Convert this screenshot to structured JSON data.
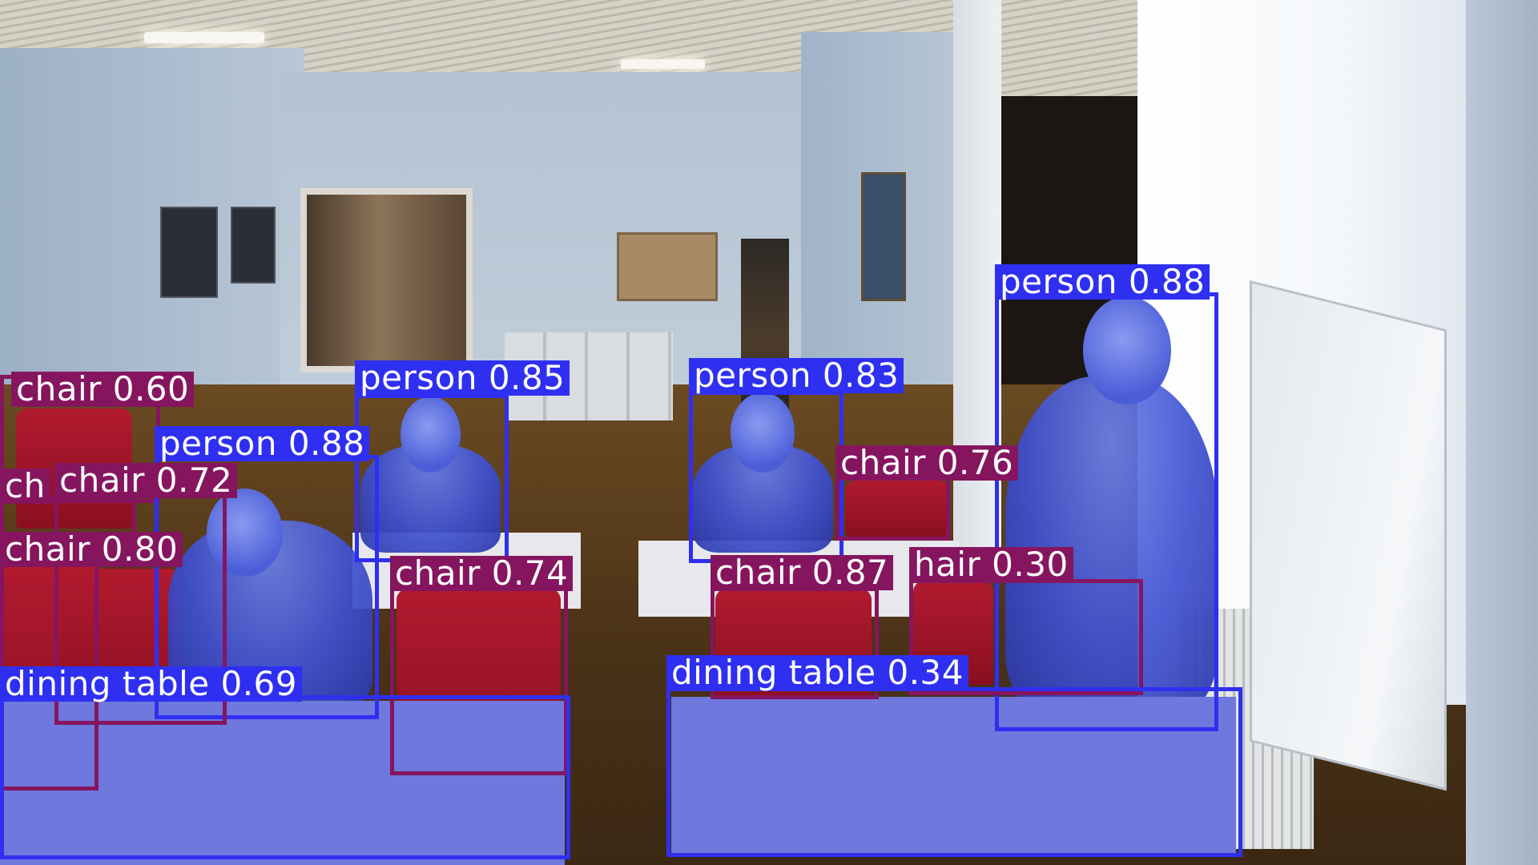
{
  "image": {
    "scene": "classroom with seated people and red chairs",
    "detections": [
      {
        "label": "chair 0.60",
        "class": "chair",
        "confidence": 0.6
      },
      {
        "label": "person 0.85",
        "class": "person",
        "confidence": 0.85
      },
      {
        "label": "person 0.83",
        "class": "person",
        "confidence": 0.83
      },
      {
        "label": "person 0.88",
        "class": "person",
        "confidence": 0.88
      },
      {
        "label": "person 0.88",
        "class": "person",
        "confidence": 0.88
      },
      {
        "label": "chair 0.72",
        "class": "chair",
        "confidence": 0.72
      },
      {
        "label": "ch",
        "class": "chair",
        "confidence": null
      },
      {
        "label": "chair 0.76",
        "class": "chair",
        "confidence": 0.76
      },
      {
        "label": "chair 0.80",
        "class": "chair",
        "confidence": 0.8
      },
      {
        "label": "chair 0.74",
        "class": "chair",
        "confidence": 0.74
      },
      {
        "label": "chair 0.87",
        "class": "chair",
        "confidence": 0.87
      },
      {
        "label": "hair 0.30",
        "class": "chair",
        "confidence": 0.3
      },
      {
        "label": "dining table 0.69",
        "class": "dining table",
        "confidence": 0.69
      },
      {
        "label": "dining table 0.34",
        "class": "dining table",
        "confidence": 0.34
      }
    ]
  },
  "colors": {
    "person": "#2f2ff2",
    "chair": "#86155f",
    "dining_table": "#2f2ff2"
  }
}
